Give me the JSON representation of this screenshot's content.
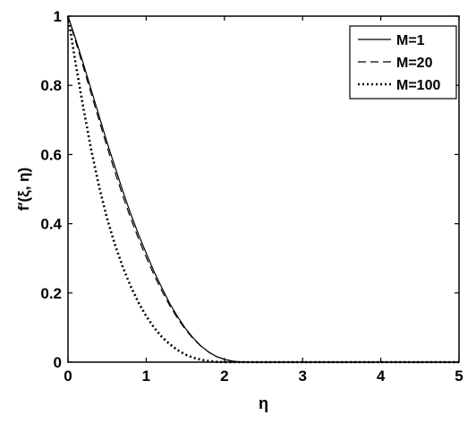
{
  "chart_data": {
    "type": "line",
    "title": "",
    "xlabel": "η",
    "ylabel": "f′(ξ, η)",
    "xlim": [
      0,
      5
    ],
    "ylim": [
      0,
      1
    ],
    "x_ticks": [
      "0",
      "1",
      "2",
      "3",
      "4",
      "5"
    ],
    "y_ticks": [
      "0",
      "0.2",
      "0.4",
      "0.6",
      "0.8",
      "1"
    ],
    "grid": false,
    "legend_position": "top-right",
    "series": [
      {
        "name": "M=1",
        "line_style": "solid",
        "x": [
          0,
          0.1,
          0.2,
          0.3,
          0.4,
          0.5,
          0.6,
          0.7,
          0.8,
          0.9,
          1.0,
          1.1,
          1.2,
          1.3,
          1.4,
          1.5,
          1.6,
          1.7,
          1.8,
          1.9,
          2.0,
          2.1,
          2.2,
          2.3,
          2.5,
          3.0,
          3.5,
          4.0,
          4.5,
          5.0
        ],
        "y": [
          1.0,
          0.932,
          0.86,
          0.785,
          0.71,
          0.635,
          0.565,
          0.495,
          0.43,
          0.37,
          0.315,
          0.262,
          0.215,
          0.17,
          0.132,
          0.098,
          0.07,
          0.047,
          0.029,
          0.016,
          0.008,
          0.003,
          0.001,
          0.0,
          0.0,
          0.0,
          0.0,
          0.0,
          0.0,
          0.0
        ]
      },
      {
        "name": "M=20",
        "line_style": "dashed",
        "x": [
          0,
          0.1,
          0.2,
          0.3,
          0.4,
          0.5,
          0.6,
          0.7,
          0.8,
          0.9,
          1.0,
          1.1,
          1.2,
          1.3,
          1.4,
          1.5,
          1.6,
          1.7,
          1.8,
          1.9,
          2.0,
          2.1,
          2.2,
          2.3,
          2.5,
          3.0,
          3.5,
          4.0,
          4.5,
          5.0
        ],
        "y": [
          1.0,
          0.925,
          0.85,
          0.773,
          0.697,
          0.622,
          0.55,
          0.481,
          0.417,
          0.358,
          0.303,
          0.252,
          0.206,
          0.164,
          0.127,
          0.095,
          0.068,
          0.046,
          0.029,
          0.016,
          0.008,
          0.003,
          0.001,
          0.0,
          0.0,
          0.0,
          0.0,
          0.0,
          0.0,
          0.0
        ]
      },
      {
        "name": "M=100",
        "line_style": "dotted",
        "x": [
          0,
          0.1,
          0.2,
          0.3,
          0.4,
          0.5,
          0.6,
          0.7,
          0.8,
          0.9,
          1.0,
          1.1,
          1.2,
          1.3,
          1.4,
          1.5,
          1.6,
          1.7,
          1.8,
          1.9,
          2.0,
          2.2,
          2.5,
          3.0,
          3.5,
          4.0,
          4.5,
          5.0
        ],
        "y": [
          1.0,
          0.86,
          0.73,
          0.61,
          0.505,
          0.415,
          0.34,
          0.275,
          0.22,
          0.173,
          0.133,
          0.1,
          0.073,
          0.052,
          0.035,
          0.022,
          0.013,
          0.007,
          0.003,
          0.001,
          0.0,
          0.0,
          0.0,
          0.0,
          0.0,
          0.0,
          0.0,
          0.0
        ]
      }
    ]
  }
}
